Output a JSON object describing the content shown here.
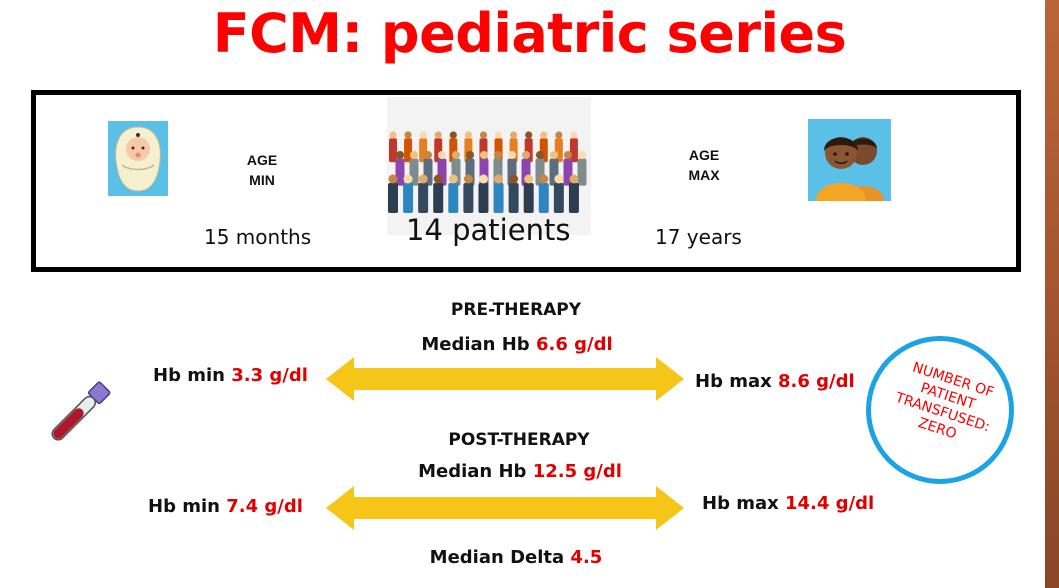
{
  "title": "FCM: pediatric series",
  "summary": {
    "age_min_label_1": "AGE",
    "age_min_label_2": "MIN",
    "age_min_value": "15 months",
    "patients": "14 patients",
    "age_max_label_1": "AGE",
    "age_max_label_2": "MAX",
    "age_max_value": "17  years"
  },
  "pre": {
    "heading": "PRE-THERAPY",
    "median_label": "Median Hb ",
    "median_value": "6.6 g/dl",
    "min_label": "Hb min ",
    "min_value": "3.3 g/dl",
    "max_label": "Hb max ",
    "max_value": "8.6 g/dl"
  },
  "post": {
    "heading": "POST-THERAPY",
    "median_label": "Median Hb ",
    "median_value": "12.5 g/dl",
    "min_label": "Hb min ",
    "min_value": "7.4 g/dl",
    "max_label": "Hb max ",
    "max_value": "14.4 g/dl"
  },
  "delta": {
    "label": "Median Delta ",
    "value": "4.5"
  },
  "stamp": {
    "line1": "NUMBER OF",
    "line2": "PATIENT",
    "line3": "TRANSFUSED:",
    "line4": "ZERO"
  },
  "colors": {
    "title": "#ff0000",
    "value_red": "#e00000",
    "arrow": "#f5c518",
    "stamp_ring": "#1ca3e6",
    "icon_bg": "#5bc0e8"
  },
  "icons": [
    "baby-icon",
    "crowd-image",
    "parents-icon",
    "blood-tube-icon"
  ]
}
